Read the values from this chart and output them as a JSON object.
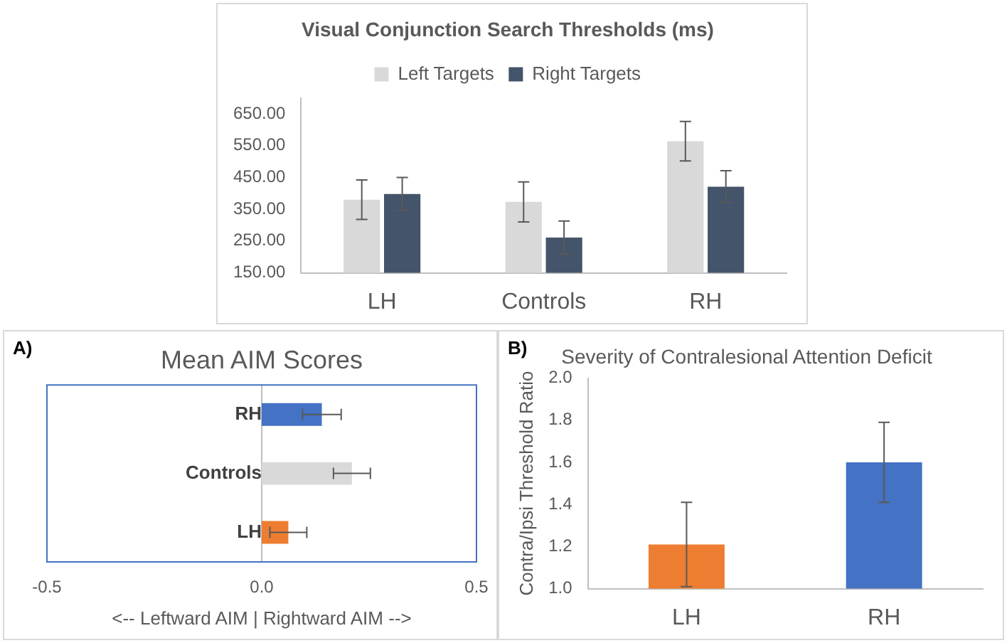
{
  "chart_data": [
    {
      "type": "bar",
      "title": "Visual Conjunction Search Thresholds (ms)",
      "categories": [
        "LH",
        "Controls",
        "RH"
      ],
      "series": [
        {
          "name": "Left Targets",
          "color": "#d9d9d9",
          "values": [
            380,
            373,
            564
          ],
          "errors": [
            62,
            63,
            62
          ]
        },
        {
          "name": "Right Targets",
          "color": "#44546a",
          "values": [
            398,
            261,
            421
          ],
          "errors": [
            52,
            52,
            50
          ]
        }
      ],
      "ylim": [
        150,
        700
      ],
      "yticks": [
        {
          "value": 150,
          "label": "150.00"
        },
        {
          "value": 250,
          "label": "250.00"
        },
        {
          "value": 350,
          "label": "350.00"
        },
        {
          "value": 450,
          "label": "450.00"
        },
        {
          "value": 550,
          "label": "550.00"
        },
        {
          "value": 650,
          "label": "650.00"
        }
      ],
      "legend": "top",
      "grid": false
    },
    {
      "type": "bar",
      "orientation": "horizontal",
      "title": "Mean AIM Scores",
      "xlabel": "<-- Leftward AIM | Rightward AIM -->",
      "categories": [
        "RH",
        "Controls",
        "LH"
      ],
      "values": [
        0.14,
        0.21,
        0.062
      ],
      "colors": [
        "#4472c4",
        "#d9d9d9",
        "#ed7d31"
      ],
      "errors": [
        0.045,
        0.043,
        0.043
      ],
      "xlim": [
        -0.5,
        0.5
      ],
      "xticks": [
        -0.5,
        {
          "value": 0,
          "label": "0.0"
        },
        0.5
      ],
      "annotations": [
        "A)"
      ],
      "legend": false,
      "grid": false
    },
    {
      "type": "bar",
      "title": "Severity of Contralesional Attention Deficit",
      "ylabel": "Contra/Ipsi Threshold Ratio",
      "categories": [
        "LH",
        "RH"
      ],
      "values": [
        1.21,
        1.6
      ],
      "colors": [
        "#ed7d31",
        "#4472c4"
      ],
      "errors": [
        0.2,
        0.19
      ],
      "ylim": [
        1,
        2
      ],
      "yticks": [
        {
          "value": 1,
          "label": "1.0"
        },
        1.2,
        1.4,
        1.6,
        1.8,
        {
          "value": 2,
          "label": "2.0"
        }
      ],
      "annotations": [
        "B)"
      ],
      "legend": false,
      "grid": false
    }
  ]
}
